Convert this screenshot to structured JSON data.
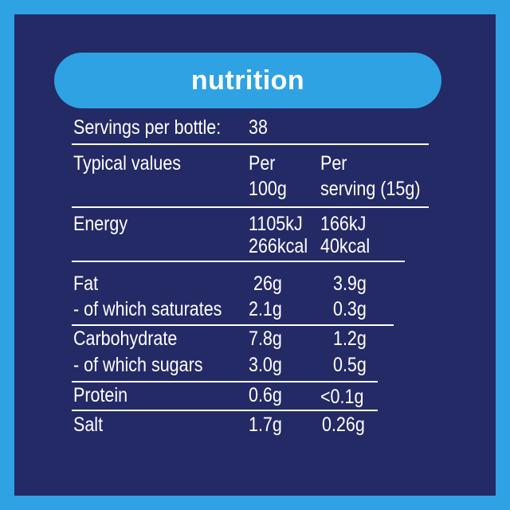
{
  "colors": {
    "outer": "#2fa2e3",
    "panel": "#242a66",
    "banner": "#2fa2e3",
    "text": "#ffffff"
  },
  "banner": {
    "title": "nutrition"
  },
  "servings": {
    "label": "Servings per bottle:",
    "value": "38"
  },
  "header": {
    "label": "Typical values",
    "per100_line1": "Per",
    "per100_line2": "100g",
    "serving_line1": "Per",
    "serving_line2": "serving (15g)"
  },
  "rows": {
    "energy": {
      "label": "Energy",
      "per100_kj": "1105kJ",
      "per100_kcal": "266kcal",
      "serving_kj": "166kJ",
      "serving_kcal": "40kcal"
    },
    "fat": {
      "label": "Fat",
      "per100": "26g",
      "serving": "3.9g"
    },
    "saturates": {
      "label": "- of which saturates",
      "per100": "2.1g",
      "serving": "0.3g"
    },
    "carbohydrate": {
      "label": "Carbohydrate",
      "per100": "7.8g",
      "serving": "1.2g"
    },
    "sugars": {
      "label": "- of which sugars",
      "per100": "3.0g",
      "serving": "0.5g"
    },
    "protein": {
      "label": "Protein",
      "per100": "0.6g",
      "serving": "<0.1g"
    },
    "salt": {
      "label": "Salt",
      "per100": "1.7g",
      "serving": "0.26g"
    }
  }
}
